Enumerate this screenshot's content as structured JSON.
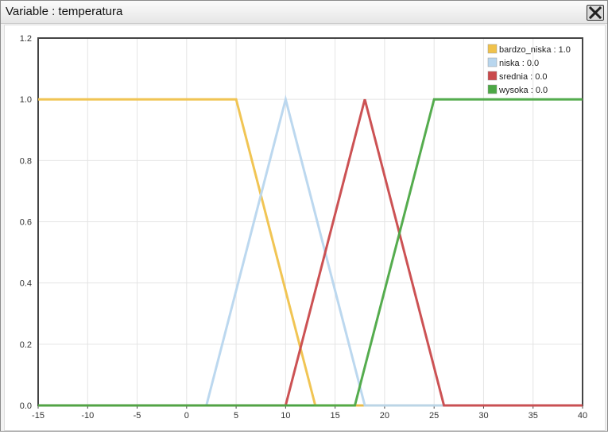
{
  "window": {
    "title": "Variable : temperatura"
  },
  "colors": {
    "bardzo_niska": "#f0c24b",
    "niska": "#b8d6ee",
    "srednia": "#c9494b",
    "wysoka": "#4ca845",
    "grid": "#e4e4e4",
    "axis": "#444444"
  },
  "icons": {
    "close": "close-icon"
  },
  "chart_data": {
    "type": "line",
    "title": "",
    "xlabel": "",
    "ylabel": "",
    "xlim": [
      -15,
      40
    ],
    "ylim": [
      0,
      1.2
    ],
    "x_ticks": [
      "-15",
      "-10",
      "-5",
      "0",
      "5",
      "10",
      "15",
      "20",
      "25",
      "30",
      "35",
      "40"
    ],
    "y_ticks": [
      "0.0",
      "0.2",
      "0.4",
      "0.6",
      "0.8",
      "1.0",
      "1.2"
    ],
    "grid": true,
    "legend_position": "top-right",
    "series": [
      {
        "name": "bardzo_niska : 1.0",
        "color": "#f0c24b",
        "points": [
          [
            -15,
            1.0
          ],
          [
            5,
            1.0
          ],
          [
            13,
            0.0
          ],
          [
            40,
            0.0
          ]
        ]
      },
      {
        "name": "niska : 0.0",
        "color": "#b8d6ee",
        "points": [
          [
            -15,
            0.0
          ],
          [
            2,
            0.0
          ],
          [
            10,
            1.0
          ],
          [
            18,
            0.0
          ],
          [
            40,
            0.0
          ]
        ]
      },
      {
        "name": "srednia : 0.0",
        "color": "#c9494b",
        "points": [
          [
            -15,
            0.0
          ],
          [
            10,
            0.0
          ],
          [
            18,
            1.0
          ],
          [
            26,
            0.0
          ],
          [
            40,
            0.0
          ]
        ]
      },
      {
        "name": "wysoka : 0.0",
        "color": "#4ca845",
        "points": [
          [
            -15,
            0.0
          ],
          [
            17,
            0.0
          ],
          [
            25,
            1.0
          ],
          [
            40,
            1.0
          ]
        ]
      }
    ]
  }
}
